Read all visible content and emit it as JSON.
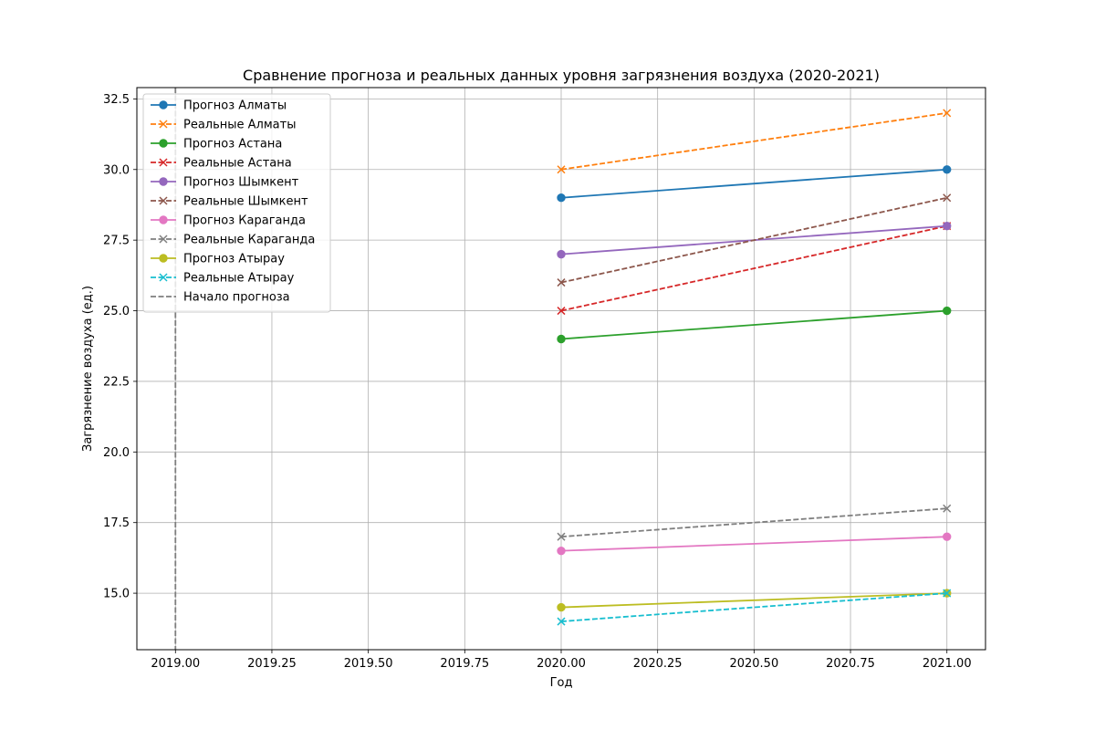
{
  "chart_data": {
    "type": "line",
    "title": "Сравнение прогноза и реальных данных уровня загрязнения воздуха (2020-2021)",
    "xlabel": "Год",
    "ylabel": "Загрязнение воздуха (ед.)",
    "xlim": [
      2018.9,
      2021.1
    ],
    "ylim": [
      13.0,
      32.9
    ],
    "xticks": [
      2019.0,
      2019.25,
      2019.5,
      2019.75,
      2020.0,
      2020.25,
      2020.5,
      2020.75,
      2021.0
    ],
    "xtick_labels": [
      "2019.00",
      "2019.25",
      "2019.50",
      "2019.75",
      "2020.00",
      "2020.25",
      "2020.50",
      "2020.75",
      "2021.00"
    ],
    "yticks": [
      15.0,
      17.5,
      20.0,
      22.5,
      25.0,
      27.5,
      30.0,
      32.5
    ],
    "ytick_labels": [
      "15.0",
      "17.5",
      "20.0",
      "22.5",
      "25.0",
      "27.5",
      "30.0",
      "32.5"
    ],
    "grid": true,
    "legend_position": "top-left",
    "x": [
      2020,
      2021
    ],
    "series": [
      {
        "name": "Прогноз Алматы",
        "values": [
          29.0,
          30.0
        ],
        "color": "#1f77b4",
        "dash": false,
        "marker": "circle"
      },
      {
        "name": "Реальные Алматы",
        "values": [
          30.0,
          32.0
        ],
        "color": "#ff7f0e",
        "dash": true,
        "marker": "x"
      },
      {
        "name": "Прогноз Астана",
        "values": [
          24.0,
          25.0
        ],
        "color": "#2ca02c",
        "dash": false,
        "marker": "circle"
      },
      {
        "name": "Реальные Астана",
        "values": [
          25.0,
          28.0
        ],
        "color": "#d62728",
        "dash": true,
        "marker": "x"
      },
      {
        "name": "Прогноз Шымкент",
        "values": [
          27.0,
          28.0
        ],
        "color": "#9467bd",
        "dash": false,
        "marker": "circle"
      },
      {
        "name": "Реальные Шымкент",
        "values": [
          26.0,
          29.0
        ],
        "color": "#8c564b",
        "dash": true,
        "marker": "x"
      },
      {
        "name": "Прогноз Караганда",
        "values": [
          16.5,
          17.0
        ],
        "color": "#e377c2",
        "dash": false,
        "marker": "circle"
      },
      {
        "name": "Реальные Караганда",
        "values": [
          17.0,
          18.0
        ],
        "color": "#7f7f7f",
        "dash": true,
        "marker": "x"
      },
      {
        "name": "Прогноз Атырау",
        "values": [
          14.5,
          15.0
        ],
        "color": "#bcbd22",
        "dash": false,
        "marker": "circle"
      },
      {
        "name": "Реальные Атырау",
        "values": [
          14.0,
          15.0
        ],
        "color": "#17becf",
        "dash": true,
        "marker": "x"
      }
    ],
    "vline": {
      "name": "Начало прогноза",
      "x": 2019.0,
      "color": "#7f7f7f",
      "dash": true
    }
  }
}
